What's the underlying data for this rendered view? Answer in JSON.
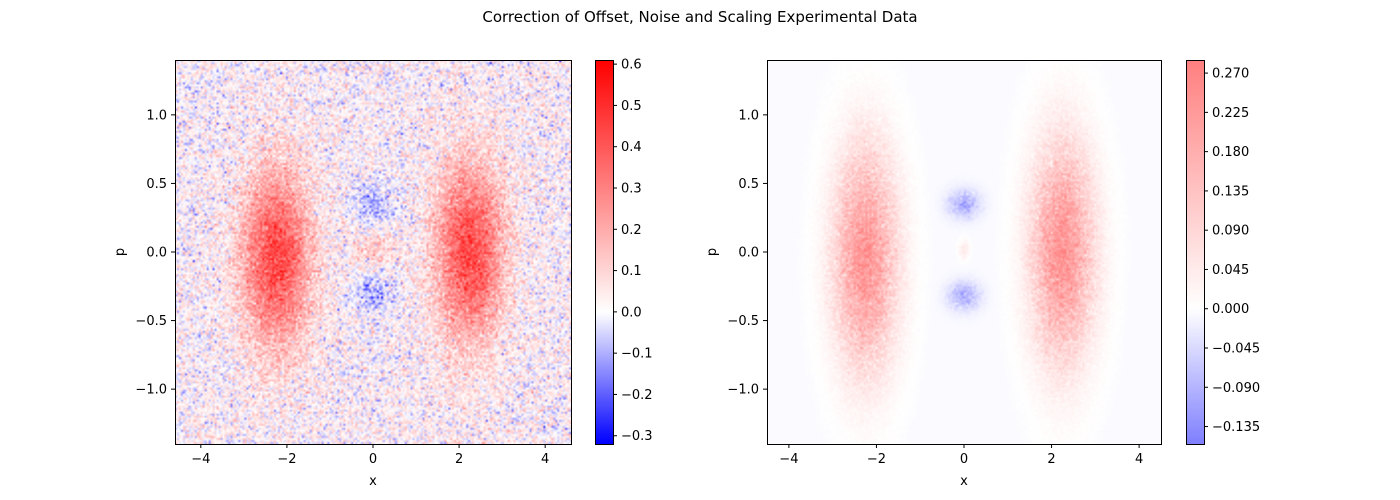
{
  "figure": {
    "suptitle": "Correction of Offset, Noise and Scaling Experimental Data"
  },
  "chart_data": [
    {
      "type": "heatmap",
      "title": "",
      "xlabel": "x",
      "ylabel": "p",
      "xlim": [
        -4.6,
        4.6
      ],
      "ylim": [
        -1.4,
        1.4
      ],
      "xticks": [
        -4,
        -2,
        0,
        2,
        4
      ],
      "yticks": [
        -1.0,
        -0.5,
        0.0,
        0.5,
        1.0
      ],
      "xtick_labels": [
        "−4",
        "−2",
        "0",
        "2",
        "4"
      ],
      "ytick_labels": [
        "−1.0",
        "−0.5",
        "0.0",
        "0.5",
        "1.0"
      ],
      "colormap": "bwr",
      "noise": "high",
      "blobs": [
        {
          "x": -2.25,
          "p": -0.05,
          "sx": 0.55,
          "sp": 0.45,
          "amp": 0.42
        },
        {
          "x": 2.25,
          "p": 0.0,
          "sx": 0.55,
          "sp": 0.45,
          "amp": 0.42
        },
        {
          "x": 0.0,
          "p": 0.35,
          "sx": 0.35,
          "sp": 0.1,
          "amp": -0.12
        },
        {
          "x": 0.0,
          "p": -0.3,
          "sx": 0.35,
          "sp": 0.1,
          "amp": -0.12
        },
        {
          "x": 0.0,
          "p": 0.02,
          "sx": 0.35,
          "sp": 0.09,
          "amp": 0.12
        }
      ],
      "colorbar": {
        "min": -0.32,
        "max": 0.61,
        "ticks": [
          -0.3,
          -0.2,
          -0.1,
          0.0,
          0.1,
          0.2,
          0.3,
          0.4,
          0.5,
          0.6
        ],
        "tick_labels": [
          "−0.3",
          "−0.2",
          "−0.1",
          "0.0",
          "0.1",
          "0.2",
          "0.3",
          "0.4",
          "0.5",
          "0.6"
        ]
      }
    },
    {
      "type": "heatmap",
      "title": "",
      "xlabel": "x",
      "ylabel": "p",
      "xlim": [
        -4.5,
        4.5
      ],
      "ylim": [
        -1.4,
        1.4
      ],
      "xticks": [
        -4,
        -2,
        0,
        2,
        4
      ],
      "yticks": [
        -1.0,
        -0.5,
        0.0,
        0.5,
        1.0
      ],
      "xtick_labels": [
        "−4",
        "−2",
        "0",
        "2",
        "4"
      ],
      "ytick_labels": [
        "−1.0",
        "−0.5",
        "0.0",
        "0.5",
        "1.0"
      ],
      "colormap": "bwr (alpha 0.5)",
      "noise": "low",
      "blobs": [
        {
          "x": -2.25,
          "p": -0.05,
          "sx": 0.5,
          "sp": 0.55,
          "amp": 0.24
        },
        {
          "x": 2.25,
          "p": 0.0,
          "sx": 0.5,
          "sp": 0.55,
          "amp": 0.24
        },
        {
          "x": 0.0,
          "p": 0.35,
          "sx": 0.25,
          "sp": 0.07,
          "amp": -0.09
        },
        {
          "x": 0.0,
          "p": -0.32,
          "sx": 0.25,
          "sp": 0.07,
          "amp": -0.09
        },
        {
          "x": 0.0,
          "p": 0.02,
          "sx": 0.08,
          "sp": 0.05,
          "amp": 0.05
        }
      ],
      "colorbar": {
        "min": -0.155,
        "max": 0.285,
        "ticks": [
          -0.135,
          -0.09,
          -0.045,
          0.0,
          0.045,
          0.09,
          0.135,
          0.18,
          0.225,
          0.27
        ],
        "tick_labels": [
          "−0.135",
          "−0.090",
          "−0.045",
          "0.000",
          "0.045",
          "0.090",
          "0.135",
          "0.180",
          "0.225",
          "0.270"
        ]
      }
    }
  ]
}
